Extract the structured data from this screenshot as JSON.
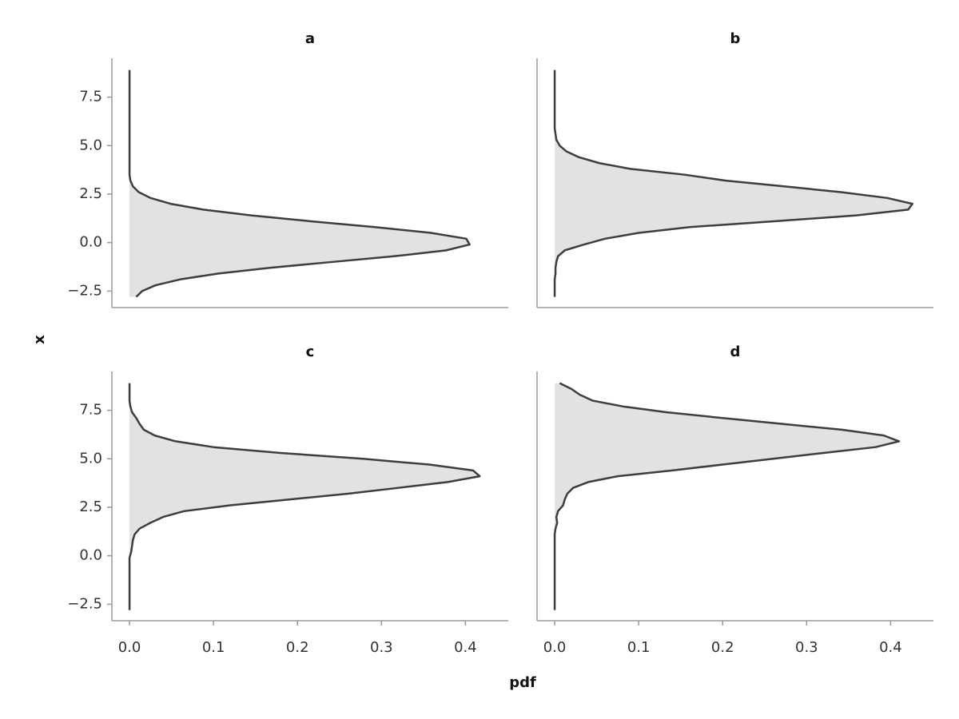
{
  "chart_data": {
    "type": "density",
    "xlabel": "pdf",
    "ylabel": "x",
    "line_color": "#3d3d3d",
    "fill_color": "#e2e2e2",
    "xlim": [
      -0.021,
      0.451
    ],
    "ylim": [
      -3.35,
      9.5
    ],
    "xticks": [
      {
        "value": 0,
        "label": "0.0"
      },
      0.1,
      0.2,
      0.3,
      0.4
    ],
    "yticks": [
      {
        "value": -2.5,
        "label": "−2.5"
      },
      {
        "value": 0,
        "label": "0.0"
      },
      2.5,
      {
        "value": 5,
        "label": "5.0"
      },
      7.5
    ],
    "x": [
      -2.8,
      -2.5,
      -2.2,
      -1.9,
      -1.6,
      -1.3,
      -1.0,
      -0.7,
      -0.4,
      -0.1,
      0.2,
      0.5,
      0.8,
      1.1,
      1.4,
      1.7,
      2.0,
      2.3,
      2.6,
      2.9,
      3.2,
      3.5,
      3.8,
      4.1,
      4.4,
      4.7,
      5.0,
      5.3,
      5.6,
      5.9,
      6.2,
      6.5,
      6.8,
      7.1,
      7.4,
      7.7,
      8.0,
      8.3,
      8.6,
      8.9
    ],
    "facets": [
      {
        "title": "a",
        "values": [
          0.008,
          0.015,
          0.031,
          0.06,
          0.105,
          0.167,
          0.241,
          0.316,
          0.377,
          0.405,
          0.401,
          0.359,
          0.292,
          0.216,
          0.145,
          0.088,
          0.049,
          0.025,
          0.011,
          0.004,
          0.001,
          0,
          0,
          0,
          0,
          0,
          0,
          0,
          0,
          0,
          0,
          0,
          0,
          0,
          0,
          0,
          0,
          0,
          0,
          0
        ]
      },
      {
        "title": "b",
        "values": [
          0,
          0,
          0,
          0,
          0.001,
          0.001,
          0.002,
          0.004,
          0.012,
          0.035,
          0.06,
          0.1,
          0.161,
          0.261,
          0.359,
          0.421,
          0.426,
          0.396,
          0.341,
          0.273,
          0.203,
          0.155,
          0.09,
          0.053,
          0.029,
          0.014,
          0.006,
          0.002,
          0.001,
          0,
          0,
          0,
          0,
          0,
          0,
          0,
          0,
          0,
          0,
          0
        ]
      },
      {
        "title": "c",
        "values": [
          0,
          0,
          0,
          0,
          0,
          0,
          0,
          0,
          0,
          0,
          0.002,
          0.003,
          0.004,
          0.006,
          0.012,
          0.025,
          0.04,
          0.065,
          0.12,
          0.19,
          0.26,
          0.32,
          0.379,
          0.417,
          0.409,
          0.357,
          0.278,
          0.18,
          0.1,
          0.055,
          0.03,
          0.017,
          0.012,
          0.008,
          0.003,
          0.001,
          0,
          0,
          0,
          0
        ]
      },
      {
        "title": "d",
        "values": [
          0,
          0,
          0,
          0,
          0,
          0,
          0,
          0,
          0,
          0,
          0,
          0,
          0,
          0,
          0.001,
          0.003,
          0.002,
          0.004,
          0.01,
          0.012,
          0.015,
          0.022,
          0.04,
          0.075,
          0.14,
          0.2,
          0.26,
          0.32,
          0.382,
          0.41,
          0.392,
          0.342,
          0.27,
          0.2,
          0.133,
          0.081,
          0.045,
          0.03,
          0.02,
          0.006
        ]
      }
    ]
  }
}
